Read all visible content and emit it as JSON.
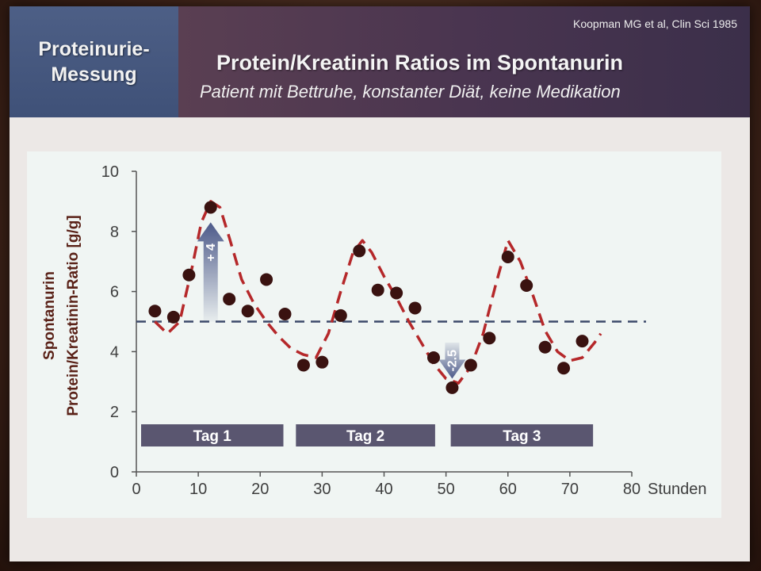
{
  "header": {
    "section_title": "Proteinurie-\nMessung",
    "title": "Protein/Kreatinin Ratios im Spontanurin",
    "subtitle": "Patient mit Bettruhe, konstanter Diät, keine Medikation",
    "citation": "Koopman MG et al, Clin Sci 1985"
  },
  "chart_data": {
    "type": "scatter",
    "ylabel_line1": "Spontanurin",
    "ylabel_line2": "Protein/Kreatinin-Ratio [g/g]",
    "xlabel": "Stunden",
    "xlim": [
      0,
      80
    ],
    "ylim": [
      0,
      10
    ],
    "xticks": [
      0,
      10,
      20,
      30,
      40,
      50,
      60,
      70,
      80
    ],
    "yticks": [
      0,
      2,
      4,
      6,
      8,
      10
    ],
    "grid": false,
    "reference_line": {
      "y": 5,
      "style": "dashed",
      "color": "#3c4a6a"
    },
    "series": [
      {
        "type": "scatter",
        "color": "#3a1210",
        "x": [
          3,
          6,
          8.5,
          12,
          15,
          18,
          21,
          24,
          27,
          30,
          33,
          36,
          39,
          42,
          45,
          48,
          51,
          54,
          57,
          60,
          63,
          66,
          69,
          72
        ],
        "y": [
          5.35,
          5.15,
          6.55,
          8.8,
          5.75,
          5.35,
          6.4,
          5.25,
          3.55,
          3.65,
          5.2,
          7.35,
          6.05,
          5.95,
          5.45,
          3.8,
          2.8,
          3.55,
          4.45,
          7.15,
          6.2,
          4.15,
          3.45,
          4.35
        ]
      },
      {
        "type": "line",
        "style": "dashed",
        "color": "#b5282a",
        "x": [
          3,
          5,
          7,
          9,
          10.5,
          12,
          13.5,
          15,
          17,
          19,
          21,
          23,
          25,
          27,
          29,
          31,
          33,
          35,
          36.5,
          38,
          40,
          42,
          44,
          46,
          48,
          50,
          52,
          54,
          56,
          58,
          60,
          62,
          64,
          66,
          68,
          70,
          72,
          74,
          75
        ],
        "y": [
          5.0,
          4.6,
          5.0,
          6.8,
          8.3,
          9.0,
          8.8,
          7.8,
          6.4,
          5.6,
          5.0,
          4.5,
          4.1,
          3.9,
          3.8,
          4.6,
          6.0,
          7.3,
          7.7,
          7.3,
          6.5,
          5.8,
          5.0,
          4.3,
          3.6,
          3.1,
          2.95,
          3.5,
          4.6,
          6.2,
          7.7,
          7.0,
          5.9,
          4.7,
          4.0,
          3.7,
          3.8,
          4.3,
          4.6
        ]
      }
    ],
    "day_bars": [
      {
        "label": "Tag 1",
        "from": 0,
        "to": 24
      },
      {
        "label": "Tag 2",
        "from": 25,
        "to": 48.5
      },
      {
        "label": "Tag 3",
        "from": 50,
        "to": 74
      }
    ],
    "annotations": [
      {
        "label": "+ 4",
        "x": 12,
        "from": 5,
        "to": 8.3,
        "direction": "up"
      },
      {
        "label": "-2.5",
        "x": 51,
        "from": 4.3,
        "to": 3.1,
        "direction": "down"
      }
    ],
    "colors": {
      "arrow": "#4d5a8a",
      "day_bar": "#5a5670"
    }
  }
}
